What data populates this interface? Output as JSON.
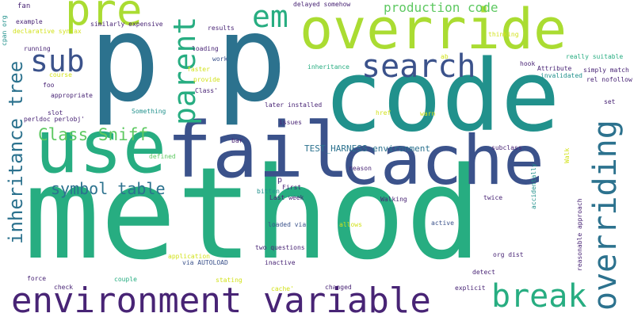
{
  "cloud": {
    "colors": {
      "purple": "#482475",
      "indigo": "#3b528b",
      "blue": "#2c728e",
      "teal": "#21918c",
      "green": "#27ad81",
      "lightgreen": "#5ec962",
      "yellowgreen": "#aadc32",
      "yellow": "#d2e21b"
    },
    "words": [
      {
        "id": "method",
        "text": "method",
        "color": "green"
      },
      {
        "id": "code",
        "text": "code",
        "color": "teal"
      },
      {
        "id": "p-left",
        "text": "p",
        "color": "blue"
      },
      {
        "id": "p-right",
        "text": "p",
        "color": "blue"
      },
      {
        "id": "override",
        "text": "override",
        "color": "yellowgreen"
      },
      {
        "id": "use",
        "text": "use",
        "color": "green"
      },
      {
        "id": "fail",
        "text": "fail",
        "color": "indigo"
      },
      {
        "id": "cache",
        "text": "cache",
        "color": "indigo"
      },
      {
        "id": "environment-variable",
        "text": "environment variable",
        "color": "purple"
      },
      {
        "id": "pre",
        "text": "pre",
        "color": "yellowgreen"
      },
      {
        "id": "em",
        "text": "em",
        "color": "green"
      },
      {
        "id": "search",
        "text": "search",
        "color": "indigo"
      },
      {
        "id": "sub",
        "text": "sub",
        "color": "indigo"
      },
      {
        "id": "break",
        "text": "break",
        "color": "green"
      },
      {
        "id": "parent",
        "text": "parent",
        "color": "green"
      },
      {
        "id": "overriding",
        "text": "overriding",
        "color": "blue"
      },
      {
        "id": "inheritance-tree",
        "text": "inheritance tree",
        "color": "blue"
      },
      {
        "id": "class-sniff",
        "text": "Class Sniff",
        "color": "lightgreen"
      },
      {
        "id": "symbol-table",
        "text": "symbol table",
        "color": "blue"
      },
      {
        "id": "production-code",
        "text": "production code",
        "color": "lightgreen"
      },
      {
        "id": "test-harness",
        "text": "TEST_HARNESS environment",
        "color": "blue"
      },
      {
        "id": "fan",
        "text": "fan",
        "color": "purple"
      },
      {
        "id": "cpan-org",
        "text": "cpan org",
        "color": "teal"
      },
      {
        "id": "example",
        "text": "example",
        "color": "purple"
      },
      {
        "id": "declarative-syntax",
        "text": "declarative syntax",
        "color": "yellow"
      },
      {
        "id": "similarly-expensive",
        "text": "similarly expensive",
        "color": "purple"
      },
      {
        "id": "results",
        "text": "results",
        "color": "purple"
      },
      {
        "id": "delayed-somehow",
        "text": "delayed somehow",
        "color": "purple"
      },
      {
        "id": "loading",
        "text": "loading",
        "color": "purple"
      },
      {
        "id": "work",
        "text": "work",
        "color": "indigo"
      },
      {
        "id": "faster",
        "text": "faster",
        "color": "yellow"
      },
      {
        "id": "provide",
        "text": "provide",
        "color": "yellow"
      },
      {
        "id": "class-quote",
        "text": "Class'",
        "color": "purple"
      },
      {
        "id": "running",
        "text": "running",
        "color": "purple"
      },
      {
        "id": "course",
        "text": "course",
        "color": "yellow"
      },
      {
        "id": "foo",
        "text": "foo",
        "color": "purple"
      },
      {
        "id": "appropriate",
        "text": "appropriate",
        "color": "purple"
      },
      {
        "id": "slot",
        "text": "slot",
        "color": "purple"
      },
      {
        "id": "perldoc-perlobj",
        "text": "perldoc perlobj'",
        "color": "purple"
      },
      {
        "id": "something",
        "text": "Something",
        "color": "teal"
      },
      {
        "id": "later-installed",
        "text": "later installed",
        "color": "purple"
      },
      {
        "id": "issues",
        "text": "issues",
        "color": "purple"
      },
      {
        "id": "href",
        "text": "href",
        "color": "yellow"
      },
      {
        "id": "warn",
        "text": "warn",
        "color": "yellow"
      },
      {
        "id": "bar",
        "text": "bar",
        "color": "purple"
      },
      {
        "id": "defined",
        "text": "defined",
        "color": "lightgreen"
      },
      {
        "id": "reason",
        "text": "reason",
        "color": "purple"
      },
      {
        "id": "bitten",
        "text": "bitten",
        "color": "teal"
      },
      {
        "id": "p-small",
        "text": "p",
        "color": "purple"
      },
      {
        "id": "first",
        "text": "First",
        "color": "purple"
      },
      {
        "id": "last-week",
        "text": "Last week",
        "color": "purple"
      },
      {
        "id": "walking",
        "text": "Walking",
        "color": "purple"
      },
      {
        "id": "loaded-via",
        "text": "loaded via",
        "color": "indigo"
      },
      {
        "id": "allows",
        "text": "allows",
        "color": "yellow"
      },
      {
        "id": "active",
        "text": "active",
        "color": "indigo"
      },
      {
        "id": "two-questions",
        "text": "two questions",
        "color": "purple"
      },
      {
        "id": "application",
        "text": "application",
        "color": "yellow"
      },
      {
        "id": "via-autoload",
        "text": "via AUTOLOAD",
        "color": "indigo"
      },
      {
        "id": "inactive",
        "text": "inactive",
        "color": "purple"
      },
      {
        "id": "org-dist",
        "text": "org dist",
        "color": "purple"
      },
      {
        "id": "detect",
        "text": "detect",
        "color": "purple"
      },
      {
        "id": "force",
        "text": "force",
        "color": "purple"
      },
      {
        "id": "check",
        "text": "check",
        "color": "purple"
      },
      {
        "id": "couple",
        "text": "couple",
        "color": "green"
      },
      {
        "id": "stating",
        "text": "stating",
        "color": "yellow"
      },
      {
        "id": "cache-quote",
        "text": "cache'",
        "color": "yellow"
      },
      {
        "id": "changed",
        "text": "changed",
        "color": "purple"
      },
      {
        "id": "explicit",
        "text": "explicit",
        "color": "purple"
      },
      {
        "id": "thinking",
        "text": "thinking",
        "color": "yellow"
      },
      {
        "id": "really-suitable",
        "text": "really suitable",
        "color": "green"
      },
      {
        "id": "ab",
        "text": "ab",
        "color": "yellow"
      },
      {
        "id": "hook",
        "text": "hook",
        "color": "purple"
      },
      {
        "id": "inheritance",
        "text": "inheritance",
        "color": "green"
      },
      {
        "id": "attribute",
        "text": "Attribute",
        "color": "purple"
      },
      {
        "id": "invalidated",
        "text": "invalidated",
        "color": "teal"
      },
      {
        "id": "simply-match",
        "text": "simply match",
        "color": "purple"
      },
      {
        "id": "rel-nofollow",
        "text": "rel nofollow",
        "color": "purple"
      },
      {
        "id": "set",
        "text": "set",
        "color": "purple"
      },
      {
        "id": "subclass",
        "text": "subclass",
        "color": "purple"
      },
      {
        "id": "walk",
        "text": "Walk",
        "color": "yellow"
      },
      {
        "id": "twice",
        "text": "twice",
        "color": "purple"
      },
      {
        "id": "accidentally",
        "text": "accidentally",
        "color": "teal"
      },
      {
        "id": "reasonable-approach",
        "text": "reasonable approach",
        "color": "purple"
      }
    ]
  }
}
